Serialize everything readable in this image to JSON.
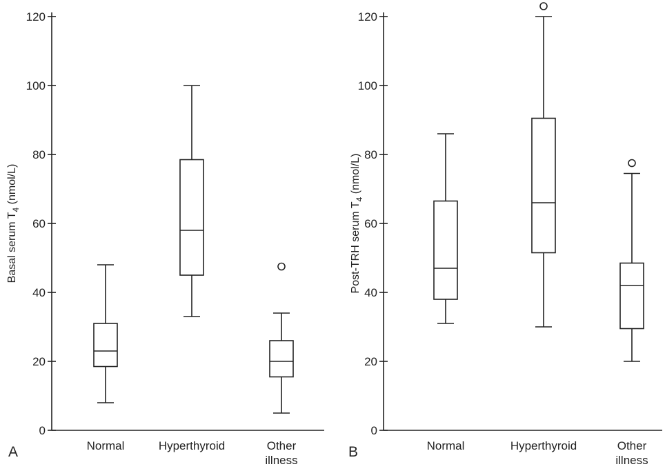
{
  "chart_data": [
    {
      "type": "box",
      "panel_label": "A",
      "ylabel": "Basal serum T",
      "ylabel_sub": "4",
      "ylabel_unit": " (nmol/L)",
      "ylim": [
        0,
        120
      ],
      "yticks": [
        0,
        20,
        40,
        60,
        80,
        100,
        120
      ],
      "categories": [
        {
          "lines": [
            "Normal"
          ]
        },
        {
          "lines": [
            "Hyperthyroid"
          ]
        },
        {
          "lines": [
            "Other",
            "illness"
          ]
        }
      ],
      "boxes": [
        {
          "min": 8,
          "q1": 18.5,
          "median": 23,
          "q3": 31,
          "max": 48,
          "outliers": []
        },
        {
          "min": 33,
          "q1": 45,
          "median": 58,
          "q3": 78.5,
          "max": 100,
          "outliers": []
        },
        {
          "min": 5,
          "q1": 15.5,
          "median": 20,
          "q3": 26,
          "max": 34,
          "outliers": [
            47.5
          ]
        }
      ]
    },
    {
      "type": "box",
      "panel_label": "B",
      "ylabel": "Post-TRH serum T",
      "ylabel_sub": "4",
      "ylabel_unit": " (nmol/L)",
      "ylim": [
        0,
        120
      ],
      "yticks": [
        0,
        20,
        40,
        60,
        80,
        100,
        120
      ],
      "categories": [
        {
          "lines": [
            "Normal"
          ]
        },
        {
          "lines": [
            "Hyperthyroid"
          ]
        },
        {
          "lines": [
            "Other",
            "illness"
          ]
        }
      ],
      "boxes": [
        {
          "min": 31,
          "q1": 38,
          "median": 47,
          "q3": 66.5,
          "max": 86,
          "outliers": []
        },
        {
          "min": 30,
          "q1": 51.5,
          "median": 66,
          "q3": 90.5,
          "max": 120,
          "outliers": [
            123
          ]
        },
        {
          "min": 20,
          "q1": 29.5,
          "median": 42,
          "q3": 48.5,
          "max": 74.5,
          "outliers": [
            77.5
          ]
        }
      ]
    }
  ]
}
